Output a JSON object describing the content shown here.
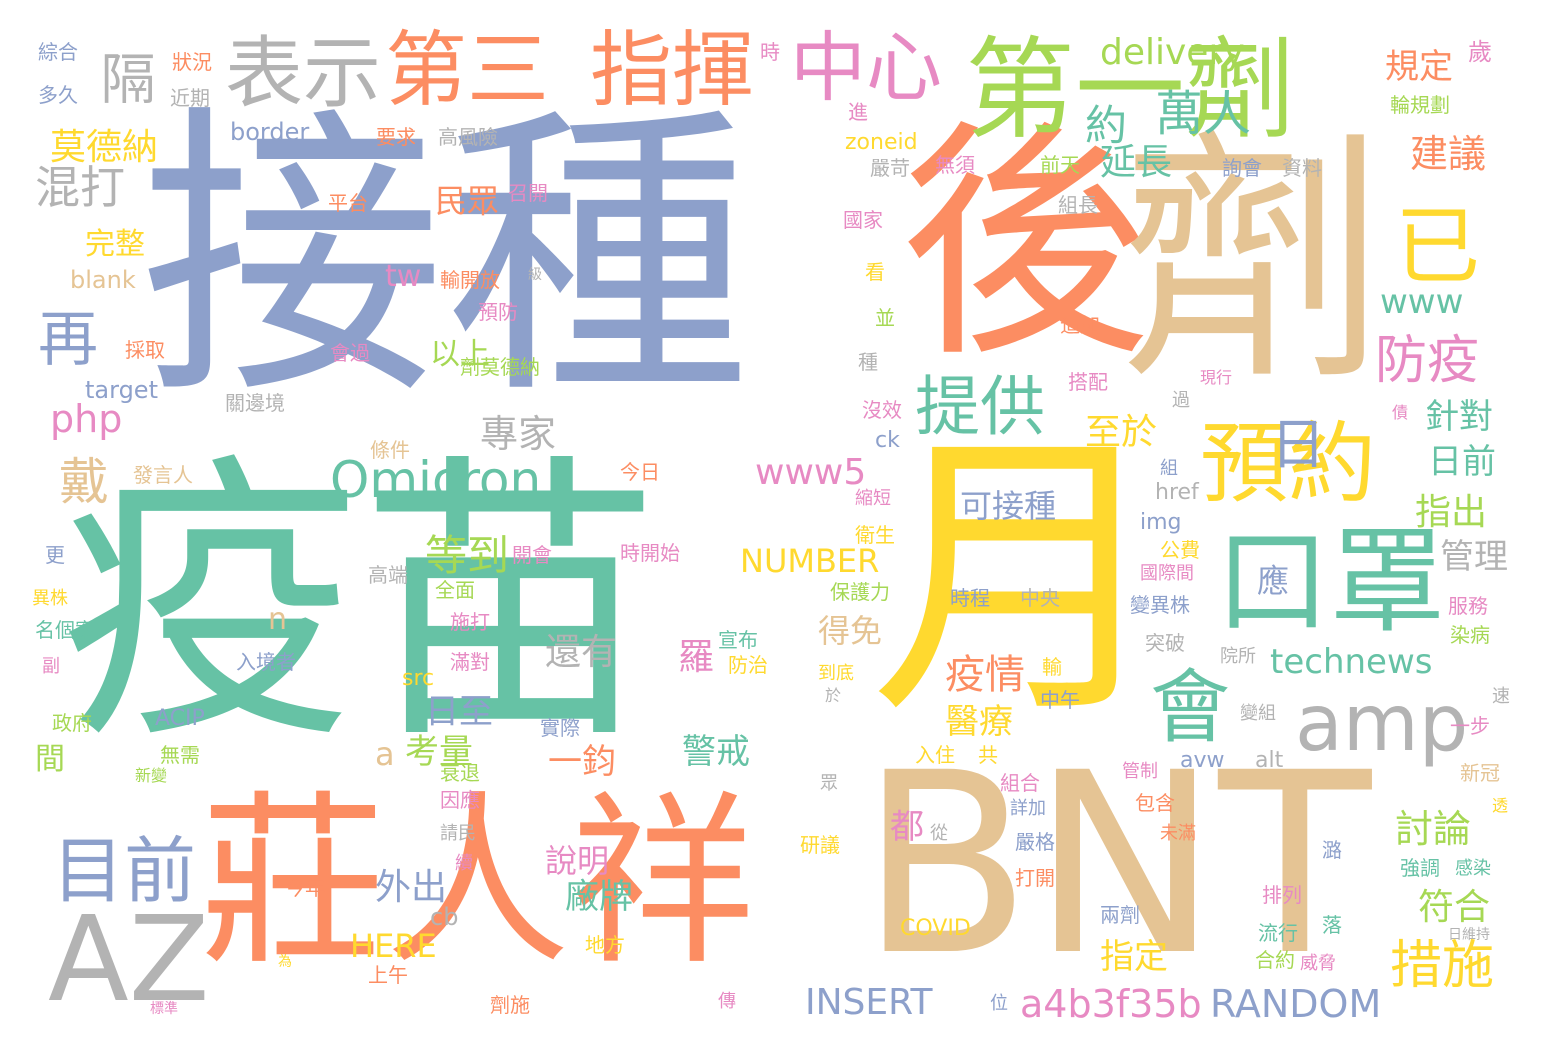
{
  "colors": {
    "blue": "#8da0cb",
    "green": "#66c2a5",
    "orange": "#fc8d62",
    "yellow": "#ffd92f",
    "tan": "#e5c494",
    "pink": "#e78ac3",
    "lime": "#a6d854",
    "gray": "#b3b3b3"
  },
  "words": [
    {
      "text": "接種",
      "color": "blue"
    },
    {
      "text": "疫苗",
      "color": "green"
    },
    {
      "text": "後",
      "color": "orange"
    },
    {
      "text": "劑",
      "color": "tan"
    },
    {
      "text": "月",
      "color": "yellow"
    },
    {
      "text": "BNT",
      "color": "tan"
    },
    {
      "text": "莊人祥",
      "color": "orange"
    },
    {
      "text": "第一劑",
      "color": "lime"
    },
    {
      "text": "第三",
      "color": "orange"
    },
    {
      "text": "指揮",
      "color": "orange"
    },
    {
      "text": "中心",
      "color": "pink"
    },
    {
      "text": "表示",
      "color": "gray"
    },
    {
      "text": "預約",
      "color": "yellow"
    },
    {
      "text": "口罩",
      "color": "green"
    },
    {
      "text": "AZ",
      "color": "gray"
    },
    {
      "text": "會",
      "color": "green"
    },
    {
      "text": "amp",
      "color": "gray"
    },
    {
      "text": "提供",
      "color": "green"
    },
    {
      "text": "已",
      "color": "yellow"
    },
    {
      "text": "隔",
      "color": "gray"
    },
    {
      "text": "再",
      "color": "blue"
    },
    {
      "text": "目前",
      "color": "blue"
    },
    {
      "text": "日",
      "color": "blue"
    },
    {
      "text": "Omicron",
      "color": "green"
    },
    {
      "text": "防疫",
      "color": "pink"
    },
    {
      "text": "約",
      "color": "green"
    },
    {
      "text": "萬人",
      "color": "green"
    },
    {
      "text": "delivery",
      "color": "lime"
    },
    {
      "text": "措施",
      "color": "yellow"
    },
    {
      "text": "technews",
      "color": "green"
    },
    {
      "text": "a4b3f35b",
      "color": "pink"
    },
    {
      "text": "RANDOM",
      "color": "blue"
    },
    {
      "text": "INSERT",
      "color": "blue"
    },
    {
      "text": "www",
      "color": "green"
    },
    {
      "text": "www5",
      "color": "pink"
    },
    {
      "text": "NUMBER",
      "color": "yellow"
    },
    {
      "text": "戴",
      "color": "tan"
    },
    {
      "text": "混打",
      "color": "gray"
    },
    {
      "text": "莫德納",
      "color": "yellow"
    },
    {
      "text": "php",
      "color": "pink"
    },
    {
      "text": "疫情",
      "color": "orange"
    },
    {
      "text": "專家",
      "color": "gray"
    },
    {
      "text": "等到",
      "color": "lime"
    },
    {
      "text": "延長",
      "color": "green"
    },
    {
      "text": "建議",
      "color": "orange"
    },
    {
      "text": "規定",
      "color": "orange"
    },
    {
      "text": "至於",
      "color": "yellow"
    },
    {
      "text": "針對",
      "color": "green"
    },
    {
      "text": "日前",
      "color": "green"
    },
    {
      "text": "指出",
      "color": "lime"
    },
    {
      "text": "管理",
      "color": "gray"
    },
    {
      "text": "可接種",
      "color": "blue"
    },
    {
      "text": "得免",
      "color": "tan"
    },
    {
      "text": "醫療",
      "color": "yellow"
    },
    {
      "text": "都",
      "color": "pink"
    },
    {
      "text": "應",
      "color": "blue"
    },
    {
      "text": "討論",
      "color": "lime"
    },
    {
      "text": "符合",
      "color": "lime"
    },
    {
      "text": "指定",
      "color": "yellow"
    },
    {
      "text": "廠牌",
      "color": "green"
    },
    {
      "text": "說明",
      "color": "pink"
    },
    {
      "text": "外出",
      "color": "blue"
    },
    {
      "text": "日至",
      "color": "blue"
    },
    {
      "text": "考量",
      "color": "lime"
    },
    {
      "text": "a",
      "color": "tan"
    },
    {
      "text": "羅",
      "color": "pink"
    },
    {
      "text": "警戒",
      "color": "green"
    },
    {
      "text": "一鈞",
      "color": "orange"
    },
    {
      "text": "還有",
      "color": "gray"
    },
    {
      "text": "HERE",
      "color": "yellow"
    },
    {
      "text": "cb",
      "color": "gray"
    },
    {
      "text": "tw",
      "color": "pink"
    },
    {
      "text": "以上",
      "color": "lime"
    },
    {
      "text": "民眾",
      "color": "orange"
    },
    {
      "text": "完整",
      "color": "yellow"
    },
    {
      "text": "blank",
      "color": "tan"
    },
    {
      "text": "border",
      "color": "blue"
    },
    {
      "text": "target",
      "color": "blue"
    },
    {
      "text": "n",
      "color": "tan"
    },
    {
      "text": "間",
      "color": "lime"
    },
    {
      "text": "zoneid",
      "color": "yellow"
    },
    {
      "text": "COVID",
      "color": "yellow"
    },
    {
      "text": "avw",
      "color": "blue"
    },
    {
      "text": "alt",
      "color": "gray"
    },
    {
      "text": "img",
      "color": "blue"
    },
    {
      "text": "href",
      "color": "gray"
    },
    {
      "text": "ck",
      "color": "blue"
    },
    {
      "text": "src",
      "color": "yellow"
    },
    {
      "text": "ACIP",
      "color": "blue"
    },
    {
      "text": "綜合",
      "color": "blue"
    },
    {
      "text": "狀況",
      "color": "orange"
    },
    {
      "text": "多久",
      "color": "blue"
    },
    {
      "text": "近期",
      "color": "gray"
    },
    {
      "text": "要求",
      "color": "orange"
    },
    {
      "text": "高風險",
      "color": "gray"
    },
    {
      "text": "時",
      "color": "pink"
    },
    {
      "text": "歲",
      "color": "pink"
    },
    {
      "text": "輪規劃",
      "color": "lime"
    },
    {
      "text": "進",
      "color": "pink"
    },
    {
      "text": "嚴苛",
      "color": "gray"
    },
    {
      "text": "無須",
      "color": "pink"
    },
    {
      "text": "前天",
      "color": "lime"
    },
    {
      "text": "詢會",
      "color": "blue"
    },
    {
      "text": "資料",
      "color": "gray"
    },
    {
      "text": "召開",
      "color": "pink"
    },
    {
      "text": "平台",
      "color": "orange"
    },
    {
      "text": "國家",
      "color": "pink"
    },
    {
      "text": "組長",
      "color": "gray"
    },
    {
      "text": "看",
      "color": "yellow"
    },
    {
      "text": "輸開放",
      "color": "orange"
    },
    {
      "text": "級",
      "color": "gray"
    },
    {
      "text": "預防",
      "color": "pink"
    },
    {
      "text": "並",
      "color": "lime"
    },
    {
      "text": "追加",
      "color": "orange"
    },
    {
      "text": "採取",
      "color": "orange"
    },
    {
      "text": "會過",
      "color": "pink"
    },
    {
      "text": "種",
      "color": "gray"
    },
    {
      "text": "搭配",
      "color": "pink"
    },
    {
      "text": "現行",
      "color": "pink"
    },
    {
      "text": "過",
      "color": "gray"
    },
    {
      "text": "關邊境",
      "color": "gray"
    },
    {
      "text": "劑莫德納",
      "color": "lime"
    },
    {
      "text": "沒效",
      "color": "pink"
    },
    {
      "text": "債",
      "color": "pink"
    },
    {
      "text": "條件",
      "color": "tan"
    },
    {
      "text": "今日",
      "color": "orange"
    },
    {
      "text": "組",
      "color": "blue"
    },
    {
      "text": "發言人",
      "color": "tan"
    },
    {
      "text": "縮短",
      "color": "pink"
    },
    {
      "text": "衛生",
      "color": "yellow"
    },
    {
      "text": "更",
      "color": "blue"
    },
    {
      "text": "開會",
      "color": "pink"
    },
    {
      "text": "時開始",
      "color": "pink"
    },
    {
      "text": "公費",
      "color": "yellow"
    },
    {
      "text": "國際間",
      "color": "pink"
    },
    {
      "text": "異株",
      "color": "yellow"
    },
    {
      "text": "高端",
      "color": "gray"
    },
    {
      "text": "全面",
      "color": "lime"
    },
    {
      "text": "保護力",
      "color": "lime"
    },
    {
      "text": "時程",
      "color": "blue"
    },
    {
      "text": "中央",
      "color": "gray"
    },
    {
      "text": "變異株",
      "color": "blue"
    },
    {
      "text": "名個案",
      "color": "green"
    },
    {
      "text": "施打",
      "color": "pink"
    },
    {
      "text": "宣布",
      "color": "green"
    },
    {
      "text": "服務",
      "color": "pink"
    },
    {
      "text": "染病",
      "color": "lime"
    },
    {
      "text": "入境者",
      "color": "blue"
    },
    {
      "text": "防治",
      "color": "yellow"
    },
    {
      "text": "突破",
      "color": "gray"
    },
    {
      "text": "院所",
      "color": "gray"
    },
    {
      "text": "副",
      "color": "pink"
    },
    {
      "text": "滿對",
      "color": "pink"
    },
    {
      "text": "到底",
      "color": "yellow"
    },
    {
      "text": "輸",
      "color": "yellow"
    },
    {
      "text": "於",
      "color": "gray"
    },
    {
      "text": "中午",
      "color": "blue"
    },
    {
      "text": "速",
      "color": "gray"
    },
    {
      "text": "政府",
      "color": "lime"
    },
    {
      "text": "實際",
      "color": "blue"
    },
    {
      "text": "變組",
      "color": "gray"
    },
    {
      "text": "一步",
      "color": "pink"
    },
    {
      "text": "無需",
      "color": "lime"
    },
    {
      "text": "入住",
      "color": "yellow"
    },
    {
      "text": "共",
      "color": "yellow"
    },
    {
      "text": "管制",
      "color": "pink"
    },
    {
      "text": "新冠",
      "color": "tan"
    },
    {
      "text": "新變",
      "color": "lime"
    },
    {
      "text": "衰退",
      "color": "lime"
    },
    {
      "text": "組合",
      "color": "pink"
    },
    {
      "text": "因應",
      "color": "pink"
    },
    {
      "text": "眾",
      "color": "gray"
    },
    {
      "text": "詳加",
      "color": "blue"
    },
    {
      "text": "包含",
      "color": "orange"
    },
    {
      "text": "透",
      "color": "yellow"
    },
    {
      "text": "請民",
      "color": "gray"
    },
    {
      "text": "從",
      "color": "gray"
    },
    {
      "text": "研議",
      "color": "yellow"
    },
    {
      "text": "嚴格",
      "color": "blue"
    },
    {
      "text": "未滿",
      "color": "orange"
    },
    {
      "text": "潞",
      "color": "blue"
    },
    {
      "text": "強調",
      "color": "green"
    },
    {
      "text": "感染",
      "color": "green"
    },
    {
      "text": "續",
      "color": "pink"
    },
    {
      "text": "今年",
      "color": "orange"
    },
    {
      "text": "打開",
      "color": "orange"
    },
    {
      "text": "排列",
      "color": "pink"
    },
    {
      "text": "為",
      "color": "yellow"
    },
    {
      "text": "上午",
      "color": "orange"
    },
    {
      "text": "地方",
      "color": "yellow"
    },
    {
      "text": "兩劑",
      "color": "blue"
    },
    {
      "text": "流行",
      "color": "green"
    },
    {
      "text": "落",
      "color": "green"
    },
    {
      "text": "日維持",
      "color": "gray"
    },
    {
      "text": "合約",
      "color": "lime"
    },
    {
      "text": "威脅",
      "color": "pink"
    },
    {
      "text": "標準",
      "color": "pink"
    },
    {
      "text": "劑施",
      "color": "orange"
    },
    {
      "text": "傳",
      "color": "pink"
    },
    {
      "text": "位",
      "color": "blue"
    }
  ]
}
